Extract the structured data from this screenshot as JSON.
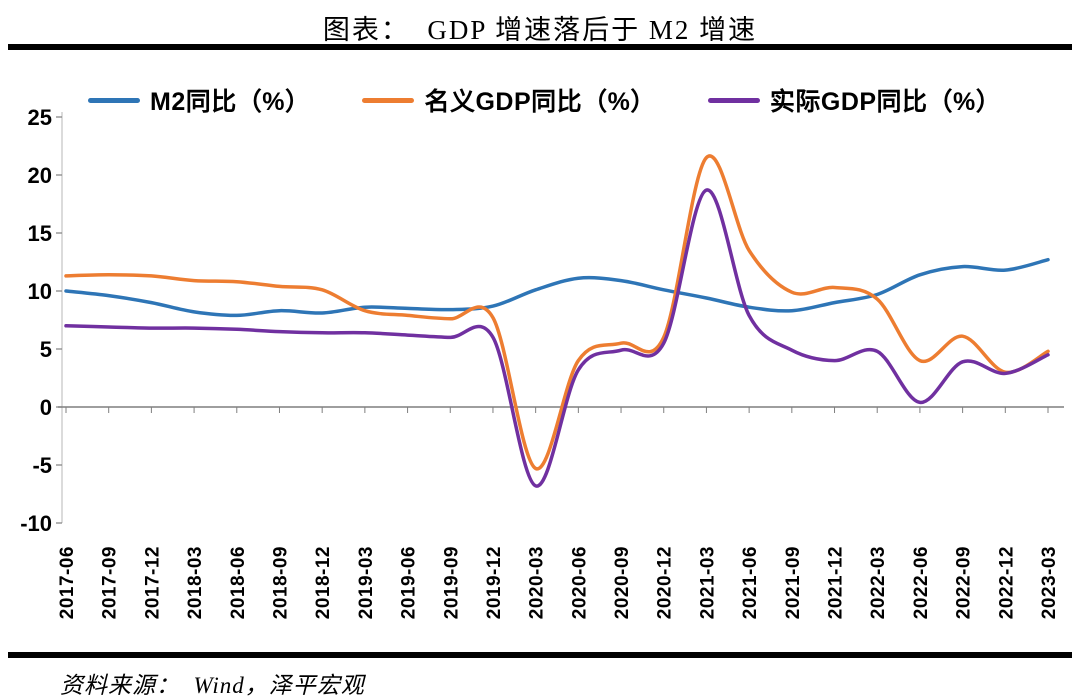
{
  "title": "图表：  GDP 增速落后于 M2 增速",
  "source": "资料来源：  Wind，泽平宏观",
  "chart_data": {
    "type": "line",
    "title": "图表： GDP 增速落后于 M2 增速",
    "xlabel": "",
    "ylabel": "",
    "ylim": [
      -10,
      25
    ],
    "yticks": [
      25,
      20,
      15,
      10,
      5,
      0,
      -5,
      -10
    ],
    "grid": false,
    "legend_position": "top",
    "x": [
      "2017-06",
      "2017-09",
      "2017-12",
      "2018-03",
      "2018-06",
      "2018-09",
      "2018-12",
      "2019-03",
      "2019-06",
      "2019-09",
      "2019-12",
      "2020-03",
      "2020-06",
      "2020-09",
      "2020-12",
      "2021-03",
      "2021-06",
      "2021-09",
      "2021-12",
      "2022-03",
      "2022-06",
      "2022-09",
      "2022-12",
      "2023-03"
    ],
    "series": [
      {
        "name": "M2同比（%）",
        "color": "#2E75B6",
        "values": [
          10.0,
          9.6,
          9.0,
          8.2,
          7.9,
          8.3,
          8.1,
          8.6,
          8.5,
          8.4,
          8.7,
          10.1,
          11.1,
          10.9,
          10.1,
          9.4,
          8.6,
          8.3,
          9.0,
          9.7,
          11.4,
          12.1,
          11.8,
          12.7
        ]
      },
      {
        "name": "名义GDP同比（%）",
        "color": "#ED7D31",
        "values": [
          11.3,
          11.4,
          11.3,
          10.9,
          10.8,
          10.4,
          10.1,
          8.3,
          7.9,
          7.6,
          7.7,
          -5.3,
          4.0,
          5.5,
          6.0,
          21.5,
          13.5,
          9.9,
          10.3,
          9.3,
          4.0,
          6.1,
          3.0,
          4.8
        ]
      },
      {
        "name": "实际GDP同比（%）",
        "color": "#7030A0",
        "values": [
          7.0,
          6.9,
          6.8,
          6.8,
          6.7,
          6.5,
          6.4,
          6.4,
          6.2,
          6.0,
          6.0,
          -6.8,
          3.2,
          4.9,
          5.5,
          18.7,
          7.9,
          4.9,
          4.0,
          4.8,
          0.4,
          3.9,
          2.9,
          4.5
        ]
      }
    ]
  }
}
